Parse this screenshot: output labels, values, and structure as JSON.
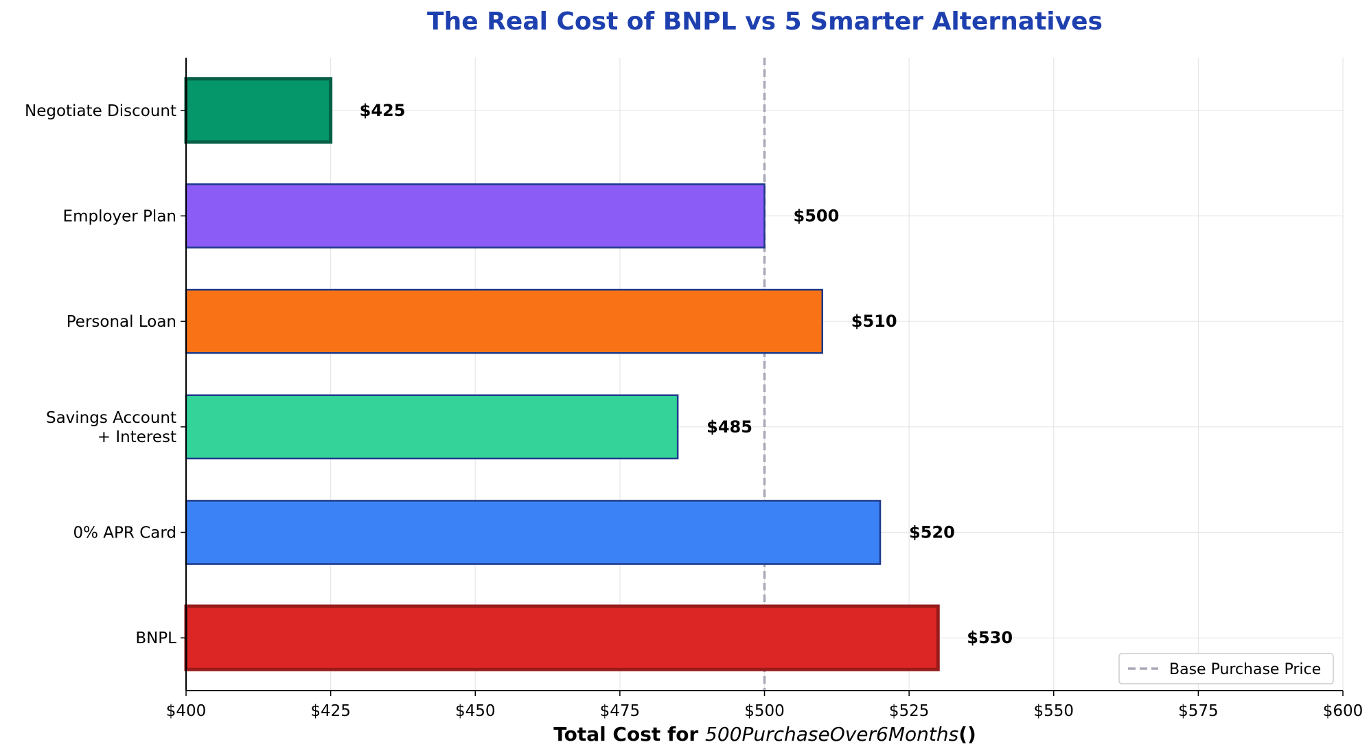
{
  "chart_data": {
    "type": "bar",
    "orientation": "horizontal",
    "title": "The Real Cost of BNPL vs 5 Smarter Alternatives",
    "xlabel_bold": "Total Cost for ",
    "xlabel_italic": "500PurchaseOver6Months",
    "xlabel_tail": "()",
    "categories": [
      "Negotiate Discount",
      "Employer Plan",
      "Personal Loan",
      "Savings Account\n+ Interest",
      "0% APR Card",
      "BNPL"
    ],
    "values": [
      425,
      500,
      510,
      485,
      520,
      530
    ],
    "value_labels": [
      "$425",
      "$500",
      "$510",
      "$485",
      "$520",
      "$530"
    ],
    "colors": [
      "#059669",
      "#8b5cf6",
      "#f97316",
      "#34d399",
      "#3b82f6",
      "#dc2626"
    ],
    "edge_colors": [
      "#065f46",
      "#1e3a8a",
      "#1e3a8a",
      "#1e3a8a",
      "#1e3a8a",
      "#991b1b"
    ],
    "x_ticks": [
      400,
      425,
      450,
      475,
      500,
      525,
      550,
      575,
      600
    ],
    "x_tick_labels": [
      "$400",
      "$425",
      "$450",
      "$475",
      "$500",
      "$525",
      "$550",
      "$575",
      "$600"
    ],
    "xlim": [
      400,
      600
    ],
    "reference_line": {
      "value": 500,
      "label": "Base Purchase Price",
      "color": "#a8a8b8"
    },
    "grid": true,
    "legend_position": "bottom-right",
    "title_color": "#1e40af"
  }
}
